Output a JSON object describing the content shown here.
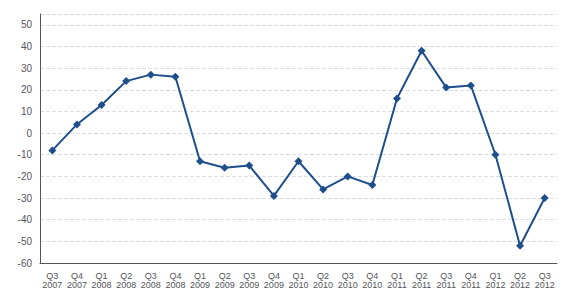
{
  "chart_data": {
    "type": "line",
    "categories": [
      "Q3\n2007",
      "Q4\n2007",
      "Q1\n2008",
      "Q2\n2008",
      "Q3\n2008",
      "Q4\n2008",
      "Q1\n2009",
      "Q2\n2009",
      "Q3\n2009",
      "Q4\n2009",
      "Q1\n2010",
      "Q2\n2010",
      "Q3\n2010",
      "Q4\n2010",
      "Q1\n2011",
      "Q2\n2011",
      "Q3\n2011",
      "Q4\n2011",
      "Q1\n2012",
      "Q2\n2012",
      "Q3\n2012"
    ],
    "values": [
      -8,
      4,
      13,
      24,
      27,
      26,
      -13,
      -16,
      -15,
      -29,
      -13,
      -26,
      -20,
      -24,
      16,
      38,
      21,
      22,
      -10,
      -52,
      -30
    ],
    "color": "#1F4E8C",
    "marker": "diamond",
    "ylim": [
      -60,
      55
    ],
    "yticks": [
      -60,
      -50,
      -40,
      -30,
      -20,
      -10,
      0,
      10,
      20,
      30,
      40,
      50
    ],
    "grid": true
  }
}
